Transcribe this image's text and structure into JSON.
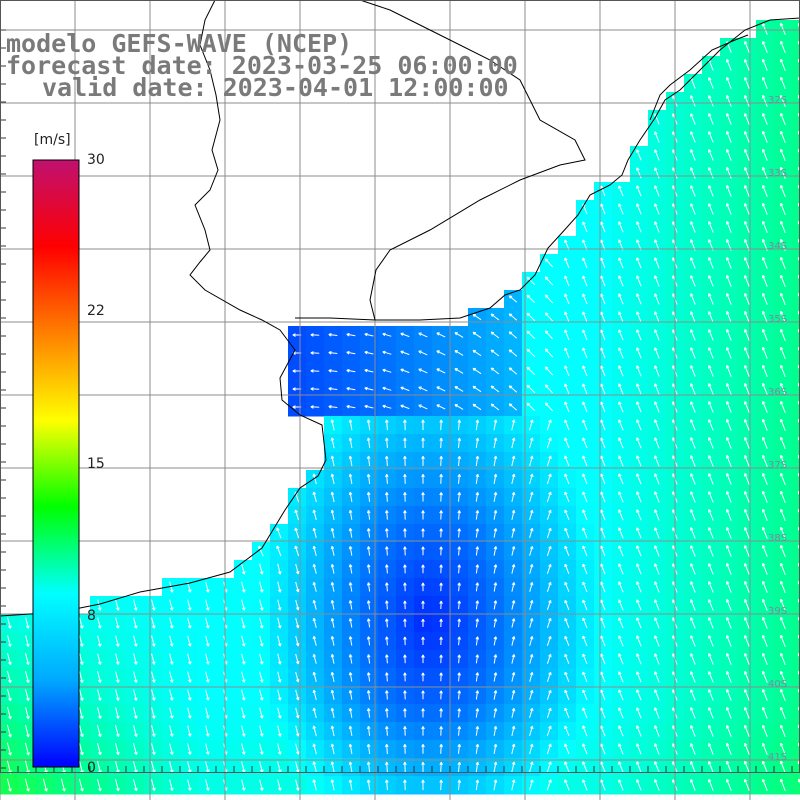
{
  "title": {
    "line1": "modelo GEFS-WAVE (NCEP)",
    "line2": "forecast date: 2023-03-25 06:00:00",
    "line3": "valid date: 2023-04-01 12:00:00"
  },
  "colorbar": {
    "unit": "[m/s]",
    "ticks": [
      "30",
      "22",
      "15",
      "8",
      "0"
    ],
    "stops": [
      "#0000ff",
      "#00a8ff",
      "#00ffff",
      "#00ff00",
      "#ffff00",
      "#ff8000",
      "#ff0000",
      "#c01070"
    ]
  },
  "lat_labels": [
    "32S",
    "33S",
    "34S",
    "35S",
    "36S",
    "37S",
    "38S",
    "39S",
    "40S",
    "41S"
  ],
  "colors": {
    "land": "#ffffff",
    "coast": "#000000",
    "grid": "#8c8c8c",
    "arrow": "#ffffff",
    "title_text": "#7a7a7a"
  }
}
